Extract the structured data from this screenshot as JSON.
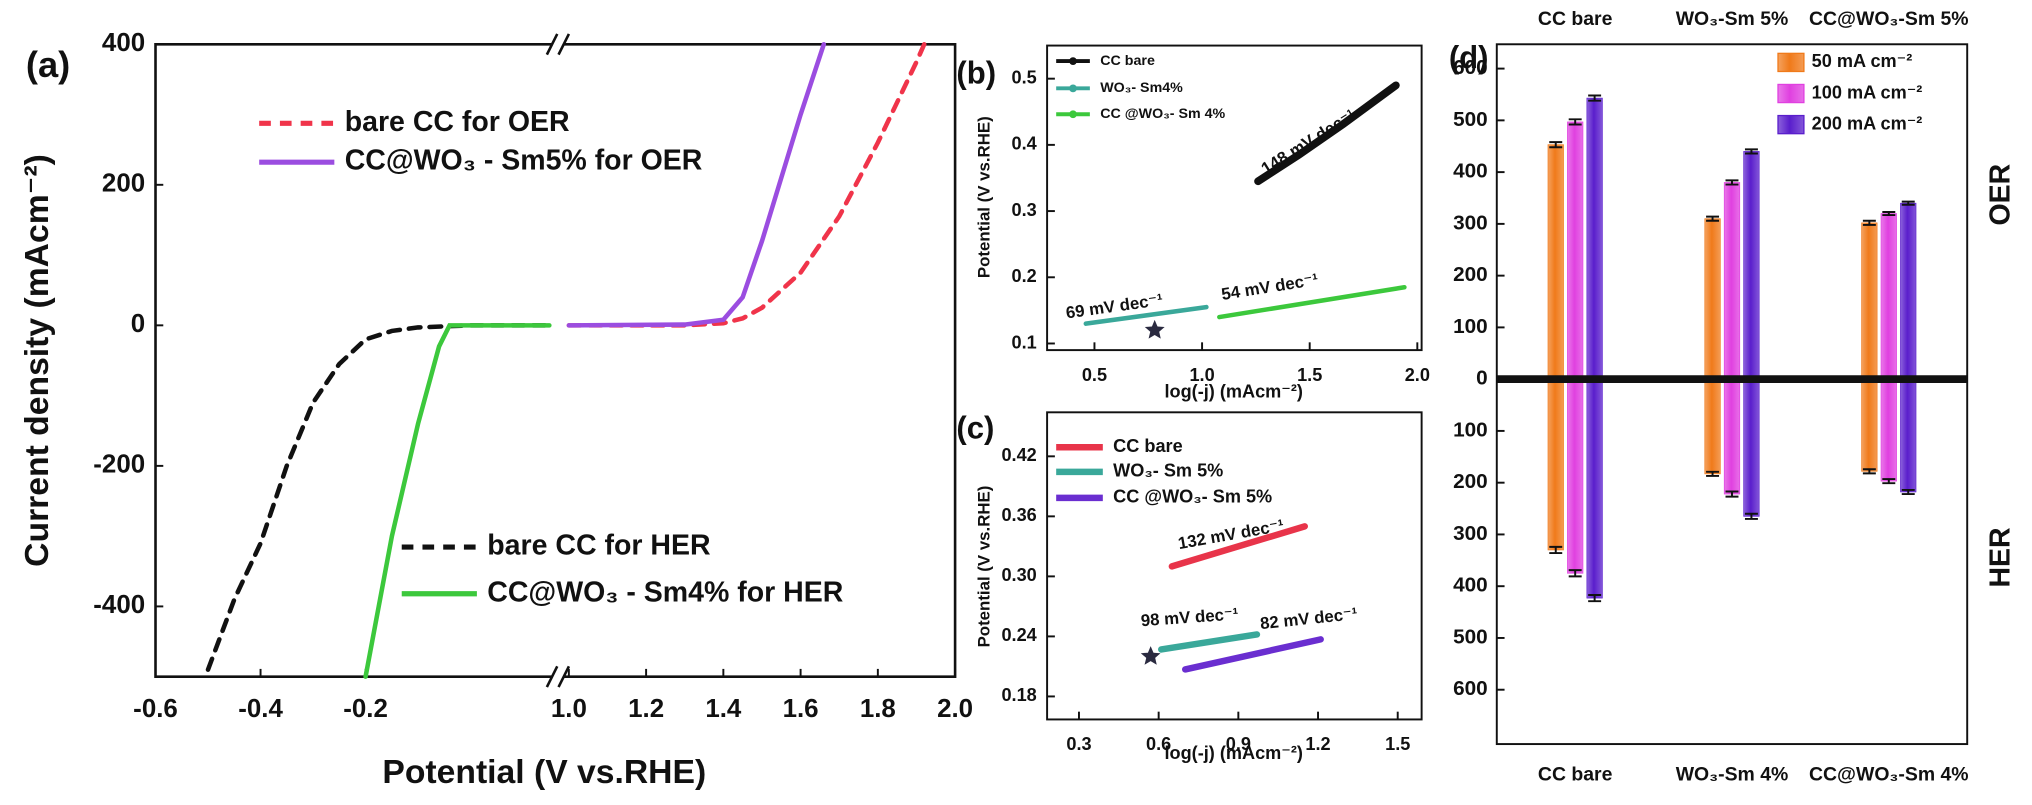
{
  "chart_data": [
    {
      "type": "line",
      "label": "(a)",
      "ylabel": "Current density (mAcm⁻²)",
      "xlabel": "Potential (V vs.RHE)",
      "xlim": [
        -0.6,
        0.16
      ],
      "xlim_right": [
        0.98,
        2.0
      ],
      "xticks": [
        -0.6,
        -0.4,
        -0.2,
        {
          "value": 1,
          "label": "1.0"
        },
        1.2,
        1.4,
        1.6,
        1.8,
        {
          "value": 2,
          "label": "2.0"
        }
      ],
      "ylim": [
        -500,
        400
      ],
      "yticks": [
        -400,
        -200,
        0,
        200,
        400
      ],
      "series": [
        {
          "name": "bare CC for OER",
          "color": "#f0344a",
          "dash": true,
          "x": [
            1.0,
            1.3,
            1.4,
            1.45,
            1.5,
            1.6,
            1.7,
            1.8,
            1.9,
            1.92
          ],
          "values": [
            0,
            0,
            3,
            10,
            25,
            75,
            155,
            260,
            375,
            400
          ]
        },
        {
          "name": "CC@WO₃ - Sm5% for OER",
          "color": "#9b4de0",
          "dash": false,
          "x": [
            1.0,
            1.3,
            1.4,
            1.45,
            1.5,
            1.55,
            1.6,
            1.66
          ],
          "values": [
            0,
            1,
            8,
            40,
            120,
            210,
            300,
            400
          ]
        },
        {
          "name": "bare CC for HER",
          "color": "#111111",
          "dash": true,
          "x": [
            -0.5,
            -0.45,
            -0.4,
            -0.35,
            -0.3,
            -0.25,
            -0.2,
            -0.15,
            -0.1,
            0,
            0.15
          ],
          "values": [
            -490,
            -390,
            -310,
            -200,
            -110,
            -55,
            -20,
            -8,
            -3,
            0,
            0
          ]
        },
        {
          "name": "CC@WO₃ - Sm4% for HER",
          "color": "#3cc83c",
          "dash": false,
          "x": [
            -0.2,
            -0.15,
            -0.1,
            -0.06,
            -0.04,
            0.15
          ],
          "values": [
            -500,
            -300,
            -140,
            -30,
            0,
            0
          ]
        }
      ]
    },
    {
      "type": "line",
      "label": "(b)",
      "ylabel": "Potential (V vs.RHE)",
      "xlabel": "log(-j) (mAcm⁻²)",
      "xlim": [
        0.28,
        2.02
      ],
      "xticks": [
        0.5,
        {
          "value": 1,
          "label": "1.0"
        },
        1.5,
        {
          "value": 2,
          "label": "2.0"
        }
      ],
      "ylim": [
        0.09,
        0.55
      ],
      "yticks": [
        0.1,
        0.2,
        0.3,
        0.4,
        0.5
      ],
      "series": [
        {
          "name": "CC bare",
          "color": "#111111",
          "x": [
            1.26,
            1.45,
            1.65,
            1.9
          ],
          "values": [
            0.345,
            0.385,
            0.43,
            0.49
          ]
        },
        {
          "name": "WO₃- Sm4%",
          "color": "#3aa89a",
          "x": [
            0.46,
            1.02
          ],
          "values": [
            0.13,
            0.155
          ]
        },
        {
          "name": "CC @WO₃- Sm 4%",
          "color": "#3cc83c",
          "x": [
            1.08,
            1.94
          ],
          "values": [
            0.14,
            0.185
          ]
        }
      ],
      "annotations": [
        "148 mV dec⁻¹",
        "69 mV dec⁻¹",
        "54 mV dec⁻¹"
      ],
      "markers": [
        {
          "x": 0.78,
          "y": 0.12
        }
      ]
    },
    {
      "type": "line",
      "label": "(c)",
      "ylabel": "Potential (V vs.RHE)",
      "xlabel": "log(-j) (mAcm⁻²)",
      "xlim": [
        0.18,
        1.59
      ],
      "xticks": [
        0.3,
        0.6,
        0.9,
        1.2,
        1.5
      ],
      "ylim": [
        0.157,
        0.464
      ],
      "yticks": [
        0.18,
        0.24,
        {
          "value": 0.3,
          "label": "0.30"
        },
        0.36,
        0.42
      ],
      "series": [
        {
          "name": "CC bare",
          "color": "#e8344a",
          "x": [
            0.65,
            1.15
          ],
          "values": [
            0.31,
            0.35
          ]
        },
        {
          "name": "WO₃- Sm 5%",
          "color": "#3aa89a",
          "x": [
            0.61,
            0.97
          ],
          "values": [
            0.227,
            0.242
          ]
        },
        {
          "name": "CC @WO₃- Sm 5%",
          "color": "#6a2ed0",
          "x": [
            0.7,
            1.21
          ],
          "values": [
            0.207,
            0.237
          ]
        }
      ],
      "annotations": [
        "132 mV dec⁻¹",
        "98 mV dec⁻¹",
        "82 mV dec⁻¹"
      ],
      "markers": [
        {
          "x": 0.57,
          "y": 0.22
        }
      ]
    },
    {
      "type": "bar",
      "label": "(d)",
      "side_labels": [
        "OER",
        "HER"
      ],
      "categories": [
        "CC bare",
        "WO₃-Sm 5%",
        "CC@WO₃-Sm 5%"
      ],
      "categories_bottom": [
        "CC bare",
        "WO₃-Sm 4%",
        "CC@WO₃-Sm 4%"
      ],
      "ylim": [
        -705,
        647
      ],
      "yticks": [
        {
          "value": -600,
          "label": "600"
        },
        {
          "value": -500,
          "label": "500"
        },
        {
          "value": -400,
          "label": "400"
        },
        {
          "value": -300,
          "label": "300"
        },
        {
          "value": -200,
          "label": "200"
        },
        {
          "value": -100,
          "label": "100"
        },
        0,
        100,
        200,
        300,
        400,
        500,
        600
      ],
      "series": [
        {
          "name": "50 mA cm⁻²",
          "color": "#f07a1a",
          "values": [
            453,
            310,
            302
          ],
          "errors": [
            5,
            4,
            4
          ],
          "her_values": [
            -330,
            -183,
            -178
          ],
          "her_errors": [
            6,
            4,
            4
          ]
        },
        {
          "name": "100 mA cm⁻²",
          "color": "#e040e0",
          "values": [
            497,
            380,
            320
          ],
          "errors": [
            5,
            4,
            3
          ],
          "her_values": [
            -375,
            -222,
            -197
          ],
          "her_errors": [
            6,
            5,
            4
          ]
        },
        {
          "name": "200 mA cm⁻²",
          "color": "#5a1ecc",
          "values": [
            543,
            440,
            340
          ],
          "errors": [
            5,
            4,
            3
          ],
          "her_values": [
            -423,
            -265,
            -218
          ],
          "her_errors": [
            6,
            5,
            4
          ]
        }
      ]
    }
  ]
}
